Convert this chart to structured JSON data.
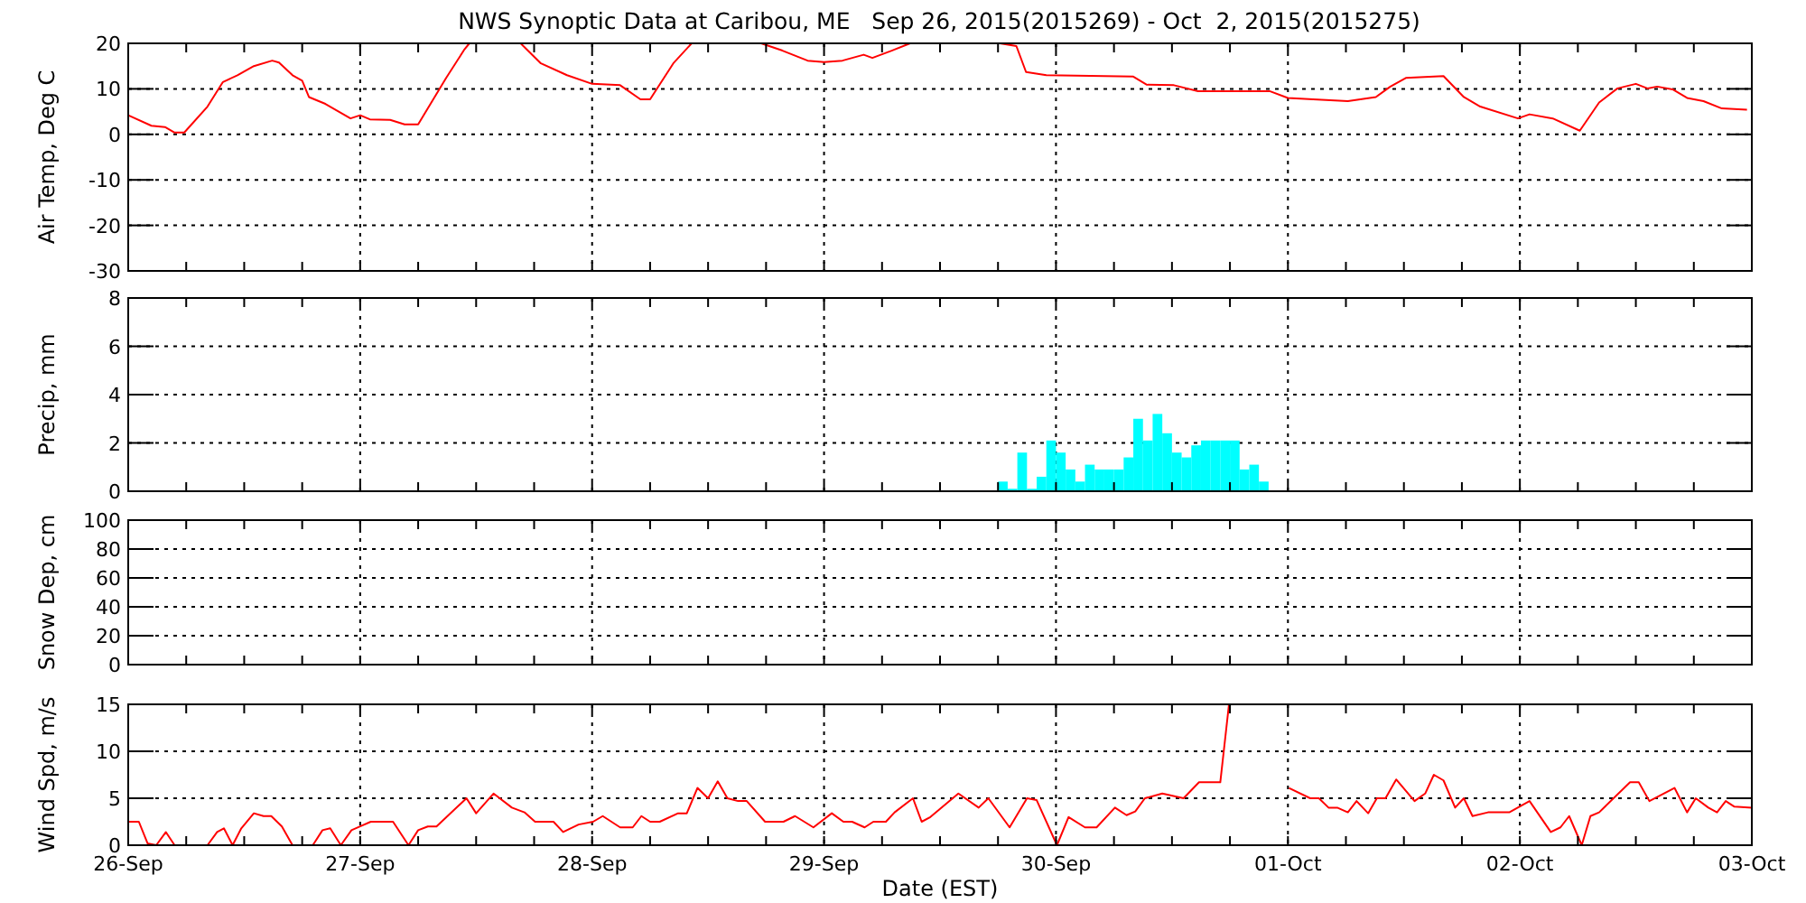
{
  "chart_data": [
    {
      "type": "line",
      "title": "NWS Synoptic Data at Caribou, ME   Sep 26, 2015(2015269) - Oct  2, 2015(2015275)",
      "ylabel": "Air Temp, Deg C",
      "color": "#ff0000",
      "x": [
        "2015-09-26T00:00",
        "2015-09-26T02:24",
        "2015-09-26T03:48",
        "2015-09-26T04:48",
        "2015-09-26T05:48",
        "2015-09-26T08:12",
        "2015-09-26T09:48",
        "2015-09-26T11:18",
        "2015-09-26T13:00",
        "2015-09-26T14:54",
        "2015-09-26T15:36",
        "2015-09-26T17:00",
        "2015-09-26T18:00",
        "2015-09-26T18:42",
        "2015-09-26T20:24",
        "2015-09-26T23:00",
        "2015-09-27T00:00",
        "2015-09-27T01:00",
        "2015-09-27T03:06",
        "2015-09-27T04:36",
        "2015-09-27T06:00",
        "2015-09-27T08:54",
        "2015-09-27T10:48",
        "2015-09-27T11:18",
        "2015-09-27T11:24",
        "2015-09-27T16:30",
        "2015-09-27T16:36",
        "2015-09-27T18:42",
        "2015-09-27T21:24",
        "2015-09-28T00:00",
        "2015-09-28T02:54",
        "2015-09-28T05:00",
        "2015-09-28T06:00",
        "2015-09-28T08:24",
        "2015-09-28T10:18",
        "2015-09-28T10:24",
        "2015-09-28T17:24",
        "2015-09-28T17:30",
        "2015-09-28T19:42",
        "2015-09-28T22:18",
        "2015-09-29T00:00",
        "2015-09-29T01:54",
        "2015-09-29T04:06",
        "2015-09-29T05:00",
        "2015-09-29T07:00",
        "2015-09-29T08:54",
        "2015-09-29T09:00",
        "2015-09-29T18:06",
        "2015-09-29T18:12",
        "2015-09-29T19:54",
        "2015-09-29T20:54",
        "2015-09-29T23:00",
        "2015-09-30T08:00",
        "2015-09-30T09:24",
        "2015-09-30T12:12",
        "2015-09-30T14:42",
        "2015-09-30T22:06",
        "2015-10-01T00:00",
        "2015-10-01T02:36",
        "2015-10-01T06:12",
        "2015-10-01T09:06",
        "2015-10-01T10:36",
        "2015-10-01T12:12",
        "2015-10-01T16:06",
        "2015-10-01T18:12",
        "2015-10-01T19:54",
        "2015-10-01T23:48",
        "2015-10-02T01:00",
        "2015-10-02T03:24",
        "2015-10-02T06:12",
        "2015-10-02T08:12",
        "2015-10-02T10:06",
        "2015-10-02T12:00",
        "2015-10-02T13:12",
        "2015-10-02T14:12",
        "2015-10-02T15:48",
        "2015-10-02T17:18",
        "2015-10-02T19:00",
        "2015-10-02T20:54",
        "2015-10-02T23:30"
      ],
      "values": [
        4.2,
        1.9,
        1.6,
        0.4,
        0.4,
        6.1,
        11.5,
        13,
        15,
        16.2,
        15.8,
        13,
        11.8,
        8.2,
        6.7,
        3.5,
        4.2,
        3.3,
        3.2,
        2.2,
        2.2,
        12.4,
        18.7,
        20,
        null,
        null,
        20,
        15.6,
        13,
        11.1,
        10.8,
        7.7,
        7.7,
        15.6,
        20,
        null,
        null,
        20,
        18.4,
        16.2,
        15.9,
        16.2,
        17.5,
        16.8,
        18.4,
        20,
        null,
        null,
        20,
        19.4,
        13.7,
        13,
        12.7,
        10.9,
        10.8,
        9.5,
        9.5,
        8,
        7.7,
        7.3,
        8.2,
        10.5,
        12.4,
        12.8,
        8.2,
        6.1,
        3.5,
        4.4,
        3.5,
        0.8,
        7,
        10.1,
        11.1,
        10.1,
        10.5,
        9.9,
        8,
        7.3,
        5.7,
        5.4
      ],
      "xlim": [
        "2015-09-26",
        "2015-10-03"
      ],
      "xticks": [
        "2015-09-26",
        {
          "value": "2015-09-26T06:00",
          "label": null
        },
        {
          "value": "2015-09-26T12:00",
          "label": null
        },
        {
          "value": "2015-09-26T18:00",
          "label": null
        },
        "2015-09-27",
        {
          "value": "2015-09-27T06:00",
          "label": null
        },
        {
          "value": "2015-09-27T12:00",
          "label": null
        },
        {
          "value": "2015-09-27T18:00",
          "label": null
        },
        "2015-09-28",
        {
          "value": "2015-09-28T06:00",
          "label": null
        },
        {
          "value": "2015-09-28T12:00",
          "label": null
        },
        {
          "value": "2015-09-28T18:00",
          "label": null
        },
        "2015-09-29",
        {
          "value": "2015-09-29T06:00",
          "label": null
        },
        {
          "value": "2015-09-29T12:00",
          "label": null
        },
        {
          "value": "2015-09-29T18:00",
          "label": null
        },
        "2015-09-30",
        {
          "value": "2015-09-30T06:00",
          "label": null
        },
        {
          "value": "2015-09-30T12:00",
          "label": null
        },
        {
          "value": "2015-09-30T18:00",
          "label": null
        },
        "2015-10-01",
        {
          "value": "2015-10-01T06:00",
          "label": null
        },
        {
          "value": "2015-10-01T12:00",
          "label": null
        },
        {
          "value": "2015-10-01T18:00",
          "label": null
        },
        "2015-10-02",
        {
          "value": "2015-10-02T06:00",
          "label": null
        },
        {
          "value": "2015-10-02T12:00",
          "label": null
        },
        {
          "value": "2015-10-02T18:00",
          "label": null
        },
        "2015-10-03"
      ],
      "ylim": [
        -30,
        20
      ],
      "yticks": [
        -30,
        -20,
        -10,
        0,
        10,
        20
      ],
      "grid": true,
      "tick_labels": "y"
    },
    {
      "type": "histogram",
      "ylabel": "Precip, mm",
      "color": "#00ffff",
      "bins": [
        "2015-09-29T18:00",
        "2015-09-29T19:00",
        "2015-09-29T20:00",
        "2015-09-29T21:00",
        "2015-09-29T22:00",
        "2015-09-29T23:00",
        "2015-09-30T00:00",
        "2015-09-30T01:00",
        "2015-09-30T02:00",
        "2015-09-30T03:00",
        "2015-09-30T04:00",
        "2015-09-30T05:00",
        "2015-09-30T06:00",
        "2015-09-30T07:00",
        "2015-09-30T08:00",
        "2015-09-30T09:00",
        "2015-09-30T10:00",
        "2015-09-30T11:00",
        "2015-09-30T12:00",
        "2015-09-30T13:00",
        "2015-09-30T14:00",
        "2015-09-30T15:00",
        "2015-09-30T16:00",
        "2015-09-30T17:00",
        "2015-09-30T18:00",
        "2015-09-30T19:00",
        "2015-09-30T20:00",
        "2015-09-30T21:00",
        "2015-09-30T22:00"
      ],
      "values": [
        0.4,
        0.1,
        1.6,
        0.1,
        0.6,
        2.1,
        1.6,
        0.9,
        0.4,
        1.1,
        0.9,
        0.9,
        0.9,
        1.4,
        3,
        2.1,
        3.2,
        2.4,
        1.6,
        1.4,
        1.9,
        2.1,
        2.1,
        2.1,
        2.1,
        0.9,
        1.1,
        0.4
      ],
      "xlim": [
        "2015-09-26",
        "2015-10-03"
      ],
      "xticks": [
        "2015-09-26",
        {
          "value": "2015-09-26T06:00",
          "label": null
        },
        {
          "value": "2015-09-26T12:00",
          "label": null
        },
        {
          "value": "2015-09-26T18:00",
          "label": null
        },
        "2015-09-27",
        {
          "value": "2015-09-27T06:00",
          "label": null
        },
        {
          "value": "2015-09-27T12:00",
          "label": null
        },
        {
          "value": "2015-09-27T18:00",
          "label": null
        },
        "2015-09-28",
        {
          "value": "2015-09-28T06:00",
          "label": null
        },
        {
          "value": "2015-09-28T12:00",
          "label": null
        },
        {
          "value": "2015-09-28T18:00",
          "label": null
        },
        "2015-09-29",
        {
          "value": "2015-09-29T06:00",
          "label": null
        },
        {
          "value": "2015-09-29T12:00",
          "label": null
        },
        {
          "value": "2015-09-29T18:00",
          "label": null
        },
        "2015-09-30",
        {
          "value": "2015-09-30T06:00",
          "label": null
        },
        {
          "value": "2015-09-30T12:00",
          "label": null
        },
        {
          "value": "2015-09-30T18:00",
          "label": null
        },
        "2015-10-01",
        {
          "value": "2015-10-01T06:00",
          "label": null
        },
        {
          "value": "2015-10-01T12:00",
          "label": null
        },
        {
          "value": "2015-10-01T18:00",
          "label": null
        },
        "2015-10-02",
        {
          "value": "2015-10-02T06:00",
          "label": null
        },
        {
          "value": "2015-10-02T12:00",
          "label": null
        },
        {
          "value": "2015-10-02T18:00",
          "label": null
        },
        "2015-10-03"
      ],
      "ylim": [
        0,
        8
      ],
      "yticks": [
        0,
        2,
        4,
        6,
        8
      ],
      "grid": true,
      "tick_labels": "y"
    },
    {
      "type": "line",
      "ylabel": "Snow Dep, cm",
      "xlim": [
        "2015-09-26",
        "2015-10-03"
      ],
      "xticks": [
        "2015-09-26",
        {
          "value": "2015-09-26T06:00",
          "label": null
        },
        {
          "value": "2015-09-26T12:00",
          "label": null
        },
        {
          "value": "2015-09-26T18:00",
          "label": null
        },
        "2015-09-27",
        {
          "value": "2015-09-27T06:00",
          "label": null
        },
        {
          "value": "2015-09-27T12:00",
          "label": null
        },
        {
          "value": "2015-09-27T18:00",
          "label": null
        },
        "2015-09-28",
        {
          "value": "2015-09-28T06:00",
          "label": null
        },
        {
          "value": "2015-09-28T12:00",
          "label": null
        },
        {
          "value": "2015-09-28T18:00",
          "label": null
        },
        "2015-09-29",
        {
          "value": "2015-09-29T06:00",
          "label": null
        },
        {
          "value": "2015-09-29T12:00",
          "label": null
        },
        {
          "value": "2015-09-29T18:00",
          "label": null
        },
        "2015-09-30",
        {
          "value": "2015-09-30T06:00",
          "label": null
        },
        {
          "value": "2015-09-30T12:00",
          "label": null
        },
        {
          "value": "2015-09-30T18:00",
          "label": null
        },
        "2015-10-01",
        {
          "value": "2015-10-01T06:00",
          "label": null
        },
        {
          "value": "2015-10-01T12:00",
          "label": null
        },
        {
          "value": "2015-10-01T18:00",
          "label": null
        },
        "2015-10-02",
        {
          "value": "2015-10-02T06:00",
          "label": null
        },
        {
          "value": "2015-10-02T12:00",
          "label": null
        },
        {
          "value": "2015-10-02T18:00",
          "label": null
        },
        "2015-10-03"
      ],
      "ylim": [
        0,
        100
      ],
      "yticks": [
        0,
        20,
        40,
        60,
        80,
        100
      ],
      "grid": true,
      "tick_labels": "y"
    },
    {
      "type": "line",
      "ylabel": "Wind Spd, m/s",
      "xlabel": "Date (EST)",
      "color": "#ff0000",
      "x": [
        "2015-09-26T00:00",
        "2015-09-26T01:06",
        "2015-09-26T02:00",
        "2015-09-26T02:54",
        "2015-09-26T03:54",
        "2015-09-26T04:48",
        "2015-09-26T08:12",
        "2015-09-26T09:12",
        "2015-09-26T09:54",
        "2015-09-26T10:48",
        "2015-09-26T11:42",
        "2015-09-26T13:00",
        "2015-09-26T14:00",
        "2015-09-26T14:48",
        "2015-09-26T15:54",
        "2015-09-26T17:00",
        "2015-09-26T19:06",
        "2015-09-26T20:06",
        "2015-09-26T20:54",
        "2015-09-26T22:00",
        "2015-09-26T23:06",
        "2015-09-27T00:00",
        "2015-09-27T01:06",
        "2015-09-27T03:24",
        "2015-09-27T05:00",
        "2015-09-27T06:00",
        "2015-09-27T07:00",
        "2015-09-27T07:54",
        "2015-09-27T11:00",
        "2015-09-27T12:00",
        "2015-09-27T13:48",
        "2015-09-27T15:42",
        "2015-09-27T17:00",
        "2015-09-27T18:06",
        "2015-09-27T20:00",
        "2015-09-27T21:00",
        "2015-09-27T22:36",
        "2015-09-28T00:06",
        "2015-09-28T01:06",
        "2015-09-28T02:54",
        "2015-09-28T04:12",
        "2015-09-28T05:06",
        "2015-09-28T06:00",
        "2015-09-28T07:00",
        "2015-09-28T08:54",
        "2015-09-28T09:48",
        "2015-09-28T10:54",
        "2015-09-28T12:00",
        "2015-09-28T13:00",
        "2015-09-28T14:00",
        "2015-09-28T15:06",
        "2015-09-28T16:00",
        "2015-09-28T17:54",
        "2015-09-28T19:48",
        "2015-09-28T21:00",
        "2015-09-28T22:54",
        "2015-09-29T00:48",
        "2015-09-29T02:00",
        "2015-09-29T02:54",
        "2015-09-29T04:12",
        "2015-09-29T05:06",
        "2015-09-29T06:24",
        "2015-09-29T07:18",
        "2015-09-29T09:12",
        "2015-09-29T10:06",
        "2015-09-29T11:00",
        "2015-09-29T13:54",
        "2015-09-29T16:00",
        "2015-09-29T17:00",
        "2015-09-29T19:12",
        "2015-09-29T21:00",
        "2015-09-29T22:00",
        "2015-09-30T00:06",
        "2015-09-30T01:18",
        "2015-09-30T03:00",
        "2015-09-30T04:12",
        "2015-09-30T06:06",
        "2015-09-30T07:18",
        "2015-09-30T08:12",
        "2015-09-30T09:12",
        "2015-09-30T11:00",
        "2015-09-30T13:12",
        "2015-09-30T14:48",
        "2015-09-30T17:00",
        "2015-09-30T17:54",
        "2015-09-30T18:00",
        "2015-10-01T00:00",
        "2015-10-01T00:06",
        "2015-10-01T02:18",
        "2015-10-01T03:12",
        "2015-10-01T04:12",
        "2015-10-01T05:06",
        "2015-10-01T06:12",
        "2015-10-01T07:06",
        "2015-10-01T08:18",
        "2015-10-01T09:12",
        "2015-10-01T10:06",
        "2015-10-01T11:12",
        "2015-10-01T13:06",
        "2015-10-01T14:12",
        "2015-10-01T15:06",
        "2015-10-01T16:06",
        "2015-10-01T17:18",
        "2015-10-01T18:12",
        "2015-10-01T19:06",
        "2015-10-01T20:42",
        "2015-10-01T22:54",
        "2015-10-02T01:00",
        "2015-10-02T03:12",
        "2015-10-02T04:12",
        "2015-10-02T05:06",
        "2015-10-02T06:24",
        "2015-10-02T07:18",
        "2015-10-02T08:12",
        "2015-10-02T11:24",
        "2015-10-02T12:18",
        "2015-10-02T13:24",
        "2015-10-02T16:00",
        "2015-10-02T17:18",
        "2015-10-02T18:12",
        "2015-10-02T19:30",
        "2015-10-02T20:24",
        "2015-10-02T21:18",
        "2015-10-02T22:12",
        "2015-10-03T00:00"
      ],
      "values": [
        2.5,
        2.5,
        0.2,
        0,
        1.4,
        0,
        0,
        1.4,
        1.8,
        0,
        1.8,
        3.4,
        3.1,
        3.1,
        2,
        0,
        0,
        1.6,
        1.8,
        0,
        1.6,
        2,
        2.5,
        2.5,
        0,
        1.6,
        2,
        2,
        5,
        3.4,
        5.5,
        4,
        3.5,
        2.5,
        2.5,
        1.4,
        2.2,
        2.5,
        3.1,
        1.9,
        1.9,
        3.1,
        2.5,
        2.5,
        3.4,
        3.4,
        6.1,
        5,
        6.8,
        5,
        4.7,
        4.7,
        2.5,
        2.5,
        3.1,
        1.9,
        3.4,
        2.5,
        2.5,
        1.9,
        2.5,
        2.5,
        3.5,
        5,
        2.5,
        3,
        5.5,
        4,
        5,
        1.9,
        5,
        4.8,
        0,
        3,
        1.9,
        1.9,
        4,
        3.2,
        3.6,
        5,
        5.5,
        5,
        6.7,
        6.7,
        15,
        null,
        null,
        6.1,
        5,
        5,
        4,
        4,
        3.5,
        4.7,
        3.4,
        5,
        5,
        7,
        4.7,
        5.5,
        7.5,
        6.9,
        4,
        5,
        3.1,
        3.5,
        3.5,
        4.7,
        1.4,
        1.9,
        3.1,
        0,
        3.1,
        3.5,
        6.7,
        6.7,
        4.7,
        6.1,
        3.5,
        5,
        4,
        3.5,
        4.7,
        4.1,
        4
      ],
      "xlim": [
        "2015-09-26",
        "2015-10-03"
      ],
      "xticks": [
        {
          "value": "2015-09-26",
          "label": "26-Sep"
        },
        {
          "value": "2015-09-26T06:00",
          "label": null
        },
        {
          "value": "2015-09-26T12:00",
          "label": null
        },
        {
          "value": "2015-09-26T18:00",
          "label": null
        },
        {
          "value": "2015-09-27",
          "label": "27-Sep"
        },
        {
          "value": "2015-09-27T06:00",
          "label": null
        },
        {
          "value": "2015-09-27T12:00",
          "label": null
        },
        {
          "value": "2015-09-27T18:00",
          "label": null
        },
        {
          "value": "2015-09-28",
          "label": "28-Sep"
        },
        {
          "value": "2015-09-28T06:00",
          "label": null
        },
        {
          "value": "2015-09-28T12:00",
          "label": null
        },
        {
          "value": "2015-09-28T18:00",
          "label": null
        },
        {
          "value": "2015-09-29",
          "label": "29-Sep"
        },
        {
          "value": "2015-09-29T06:00",
          "label": null
        },
        {
          "value": "2015-09-29T12:00",
          "label": null
        },
        {
          "value": "2015-09-29T18:00",
          "label": null
        },
        {
          "value": "2015-09-30",
          "label": "30-Sep"
        },
        {
          "value": "2015-09-30T06:00",
          "label": null
        },
        {
          "value": "2015-09-30T12:00",
          "label": null
        },
        {
          "value": "2015-09-30T18:00",
          "label": null
        },
        {
          "value": "2015-10-01",
          "label": "01-Oct"
        },
        {
          "value": "2015-10-01T06:00",
          "label": null
        },
        {
          "value": "2015-10-01T12:00",
          "label": null
        },
        {
          "value": "2015-10-01T18:00",
          "label": null
        },
        {
          "value": "2015-10-02",
          "label": "02-Oct"
        },
        {
          "value": "2015-10-02T06:00",
          "label": null
        },
        {
          "value": "2015-10-02T12:00",
          "label": null
        },
        {
          "value": "2015-10-02T18:00",
          "label": null
        },
        {
          "value": "2015-10-03",
          "label": "03-Oct"
        }
      ],
      "ylim": [
        0,
        15
      ],
      "yticks": [
        0,
        5,
        10,
        15
      ],
      "grid": true
    }
  ]
}
